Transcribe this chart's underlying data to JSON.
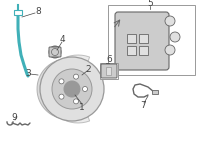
{
  "bg_color": "#ffffff",
  "teal": "#40b0b8",
  "dark": "#666666",
  "mid": "#999999",
  "light": "#cccccc",
  "very_light": "#e0e0e0",
  "label_color": "#444444",
  "fig_width": 2.0,
  "fig_height": 1.47,
  "dpi": 100
}
